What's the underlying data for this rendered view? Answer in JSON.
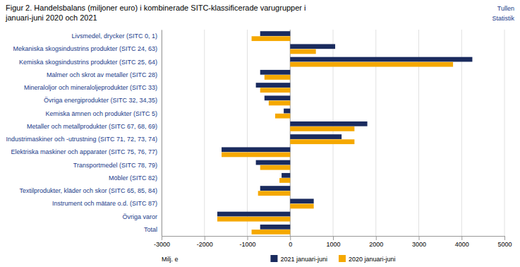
{
  "chart_data": {
    "type": "bar",
    "orientation": "horizontal",
    "title": "Figur 2. Handelsbalans (miljoner euro) i kombinerade SITC-klassificerade varugrupper i",
    "subtitle": "januari-juni 2020 och 2021",
    "annotations": [
      "Tullen",
      "Statistik"
    ],
    "xlabel": "Milj. e",
    "categories": [
      "Livsmedel, drycker (SITC 0, 1)",
      "Mekaniska skogsindustrins produkter (SITC 24, 63)",
      "Kemiska skogsindustrins produkter (SITC 25, 64)",
      "Malmer och skrot av metaller (SITC 28)",
      "Mineraloljor och mineraloljeprodukter (SITC 33)",
      "Övriga energiprodukter (SITC 32, 34,35)",
      "Kemiska ämnen och produkter (SITC 5)",
      "Metaller och metallprodukter (SITC 67, 68, 69)",
      "Industrimaskiner och -utrustning (SITC 71, 72, 73, 74)",
      "Elektriska maskiner och apparater (SITC 75, 76, 77)",
      "Transportmedel (SITC 78, 79)",
      "Möbler (SITC 82)",
      "Textilprodukter, kläder och skor (SITC 65, 85, 84)",
      "Instrument och mätare o.d. (SITC 87)",
      "Övriga varor",
      "Total"
    ],
    "series": [
      {
        "name": "2021 januari-juni",
        "color": "#1a2b5e",
        "values": [
          -700,
          1050,
          4250,
          -700,
          -800,
          -600,
          -150,
          1800,
          1200,
          -1600,
          -800,
          -200,
          -700,
          550,
          -1700,
          -700
        ]
      },
      {
        "name": "2020 januari-juni",
        "color": "#f5a800",
        "values": [
          -900,
          600,
          3800,
          -600,
          -700,
          -500,
          -350,
          1500,
          1500,
          -1600,
          -700,
          -250,
          -750,
          550,
          -1700,
          -900
        ]
      }
    ],
    "xlim": [
      -3000,
      5000
    ],
    "xticks": [
      -3000,
      -2000,
      -1000,
      0,
      1000,
      2000,
      3000,
      4000,
      5000
    ],
    "grid": true,
    "legend": "bottom"
  }
}
